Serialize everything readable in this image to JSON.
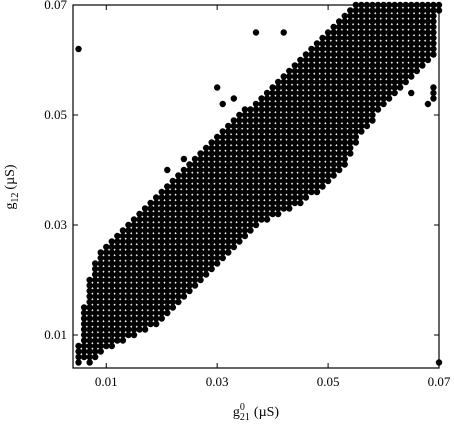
{
  "chart_data": {
    "type": "scatter",
    "xlabel_base": "g",
    "xlabel_sup": "0",
    "xlabel_sub": "21",
    "xlabel_unit": "(µS)",
    "ylabel_base": "g",
    "ylabel_sub": "12",
    "ylabel_unit": "(µS)",
    "xlim": [
      0.004,
      0.07
    ],
    "ylim": [
      0.004,
      0.07
    ],
    "x_ticks": [
      0.01,
      0.03,
      0.05,
      0.07
    ],
    "x_tick_labels": [
      "0.01",
      "0.03",
      "0.05",
      "0.07"
    ],
    "y_ticks": [
      0.01,
      0.03,
      0.05,
      0.07
    ],
    "y_tick_labels": [
      "0.01",
      "0.03",
      "0.05",
      "0.07"
    ],
    "grid": false,
    "grid_step": 0.001,
    "marker_color": "#000000",
    "rows": [
      {
        "y": 0.07,
        "x": [
          [
            0.055,
            0.07
          ]
        ]
      },
      {
        "y": 0.069,
        "x": [
          [
            0.054,
            0.07
          ]
        ]
      },
      {
        "y": 0.068,
        "x": [
          [
            0.053,
            0.069
          ]
        ]
      },
      {
        "y": 0.067,
        "x": [
          [
            0.052,
            0.069
          ]
        ]
      },
      {
        "y": 0.066,
        "x": [
          [
            0.051,
            0.069
          ]
        ]
      },
      {
        "y": 0.065,
        "x": [
          0.037,
          0.042,
          [
            0.05,
            0.069
          ]
        ]
      },
      {
        "y": 0.064,
        "x": [
          [
            0.049,
            0.069
          ]
        ]
      },
      {
        "y": 0.063,
        "x": [
          [
            0.048,
            0.069
          ]
        ]
      },
      {
        "y": 0.062,
        "x": [
          0.005,
          [
            0.047,
            0.069
          ]
        ]
      },
      {
        "y": 0.061,
        "x": [
          [
            0.046,
            0.069
          ]
        ]
      },
      {
        "y": 0.06,
        "x": [
          [
            0.045,
            0.068
          ]
        ]
      },
      {
        "y": 0.059,
        "x": [
          [
            0.044,
            0.067
          ]
        ]
      },
      {
        "y": 0.058,
        "x": [
          [
            0.043,
            0.066
          ]
        ]
      },
      {
        "y": 0.057,
        "x": [
          [
            0.042,
            0.065
          ]
        ]
      },
      {
        "y": 0.056,
        "x": [
          [
            0.041,
            0.064
          ]
        ]
      },
      {
        "y": 0.055,
        "x": [
          0.03,
          [
            0.04,
            0.063
          ],
          0.069
        ]
      },
      {
        "y": 0.054,
        "x": [
          [
            0.039,
            0.062
          ],
          0.065,
          0.069
        ]
      },
      {
        "y": 0.053,
        "x": [
          0.033,
          [
            0.038,
            0.061
          ],
          0.069
        ]
      },
      {
        "y": 0.052,
        "x": [
          0.031,
          [
            0.037,
            0.06
          ],
          0.068
        ]
      },
      {
        "y": 0.051,
        "x": [
          [
            0.035,
            0.059
          ]
        ]
      },
      {
        "y": 0.05,
        "x": [
          [
            0.034,
            0.058
          ]
        ]
      },
      {
        "y": 0.049,
        "x": [
          [
            0.033,
            0.058
          ]
        ]
      },
      {
        "y": 0.048,
        "x": [
          [
            0.032,
            0.057
          ]
        ]
      },
      {
        "y": 0.047,
        "x": [
          [
            0.031,
            0.056
          ]
        ]
      },
      {
        "y": 0.046,
        "x": [
          [
            0.03,
            0.055
          ]
        ]
      },
      {
        "y": 0.045,
        "x": [
          [
            0.029,
            0.055
          ]
        ]
      },
      {
        "y": 0.044,
        "x": [
          [
            0.028,
            0.054
          ]
        ]
      },
      {
        "y": 0.043,
        "x": [
          [
            0.027,
            0.054
          ]
        ]
      },
      {
        "y": 0.042,
        "x": [
          0.024,
          [
            0.026,
            0.053
          ]
        ]
      },
      {
        "y": 0.041,
        "x": [
          [
            0.025,
            0.053
          ]
        ]
      },
      {
        "y": 0.04,
        "x": [
          0.021,
          [
            0.024,
            0.052
          ]
        ]
      },
      {
        "y": 0.039,
        "x": [
          [
            0.023,
            0.051
          ]
        ]
      },
      {
        "y": 0.038,
        "x": [
          [
            0.022,
            0.05
          ]
        ]
      },
      {
        "y": 0.037,
        "x": [
          [
            0.021,
            0.049
          ]
        ]
      },
      {
        "y": 0.036,
        "x": [
          [
            0.02,
            0.048
          ]
        ]
      },
      {
        "y": 0.035,
        "x": [
          [
            0.019,
            0.046
          ]
        ]
      },
      {
        "y": 0.034,
        "x": [
          [
            0.018,
            0.045
          ]
        ]
      },
      {
        "y": 0.033,
        "x": [
          [
            0.017,
            0.043
          ]
        ]
      },
      {
        "y": 0.032,
        "x": [
          [
            0.016,
            0.041
          ]
        ]
      },
      {
        "y": 0.031,
        "x": [
          [
            0.015,
            0.039
          ]
        ]
      },
      {
        "y": 0.03,
        "x": [
          [
            0.014,
            0.037
          ]
        ]
      },
      {
        "y": 0.029,
        "x": [
          [
            0.013,
            0.036
          ]
        ]
      },
      {
        "y": 0.028,
        "x": [
          [
            0.012,
            0.035
          ]
        ]
      },
      {
        "y": 0.027,
        "x": [
          [
            0.011,
            0.034
          ]
        ]
      },
      {
        "y": 0.026,
        "x": [
          [
            0.01,
            0.033
          ]
        ]
      },
      {
        "y": 0.025,
        "x": [
          [
            0.009,
            0.032
          ]
        ]
      },
      {
        "y": 0.024,
        "x": [
          [
            0.009,
            0.031
          ]
        ]
      },
      {
        "y": 0.023,
        "x": [
          [
            0.008,
            0.03
          ]
        ]
      },
      {
        "y": 0.022,
        "x": [
          [
            0.008,
            0.029
          ]
        ]
      },
      {
        "y": 0.021,
        "x": [
          [
            0.008,
            0.028
          ]
        ]
      },
      {
        "y": 0.02,
        "x": [
          [
            0.007,
            0.027
          ]
        ]
      },
      {
        "y": 0.019,
        "x": [
          [
            0.007,
            0.026
          ]
        ]
      },
      {
        "y": 0.018,
        "x": [
          [
            0.007,
            0.025
          ]
        ]
      },
      {
        "y": 0.017,
        "x": [
          [
            0.007,
            0.024
          ]
        ]
      },
      {
        "y": 0.016,
        "x": [
          [
            0.007,
            0.023
          ]
        ]
      },
      {
        "y": 0.015,
        "x": [
          [
            0.006,
            0.022
          ]
        ]
      },
      {
        "y": 0.014,
        "x": [
          [
            0.006,
            0.021
          ]
        ]
      },
      {
        "y": 0.013,
        "x": [
          [
            0.006,
            0.02
          ]
        ]
      },
      {
        "y": 0.012,
        "x": [
          [
            0.006,
            0.019
          ]
        ]
      },
      {
        "y": 0.011,
        "x": [
          [
            0.006,
            0.017
          ]
        ]
      },
      {
        "y": 0.01,
        "x": [
          [
            0.006,
            0.015
          ]
        ]
      },
      {
        "y": 0.009,
        "x": [
          [
            0.006,
            0.013
          ]
        ]
      },
      {
        "y": 0.008,
        "x": [
          [
            0.005,
            0.011
          ]
        ]
      },
      {
        "y": 0.007,
        "x": [
          [
            0.005,
            0.009
          ]
        ]
      },
      {
        "y": 0.006,
        "x": [
          [
            0.005,
            0.008
          ]
        ]
      },
      {
        "y": 0.005,
        "x": [
          0.005,
          0.007,
          0.07
        ]
      }
    ]
  }
}
